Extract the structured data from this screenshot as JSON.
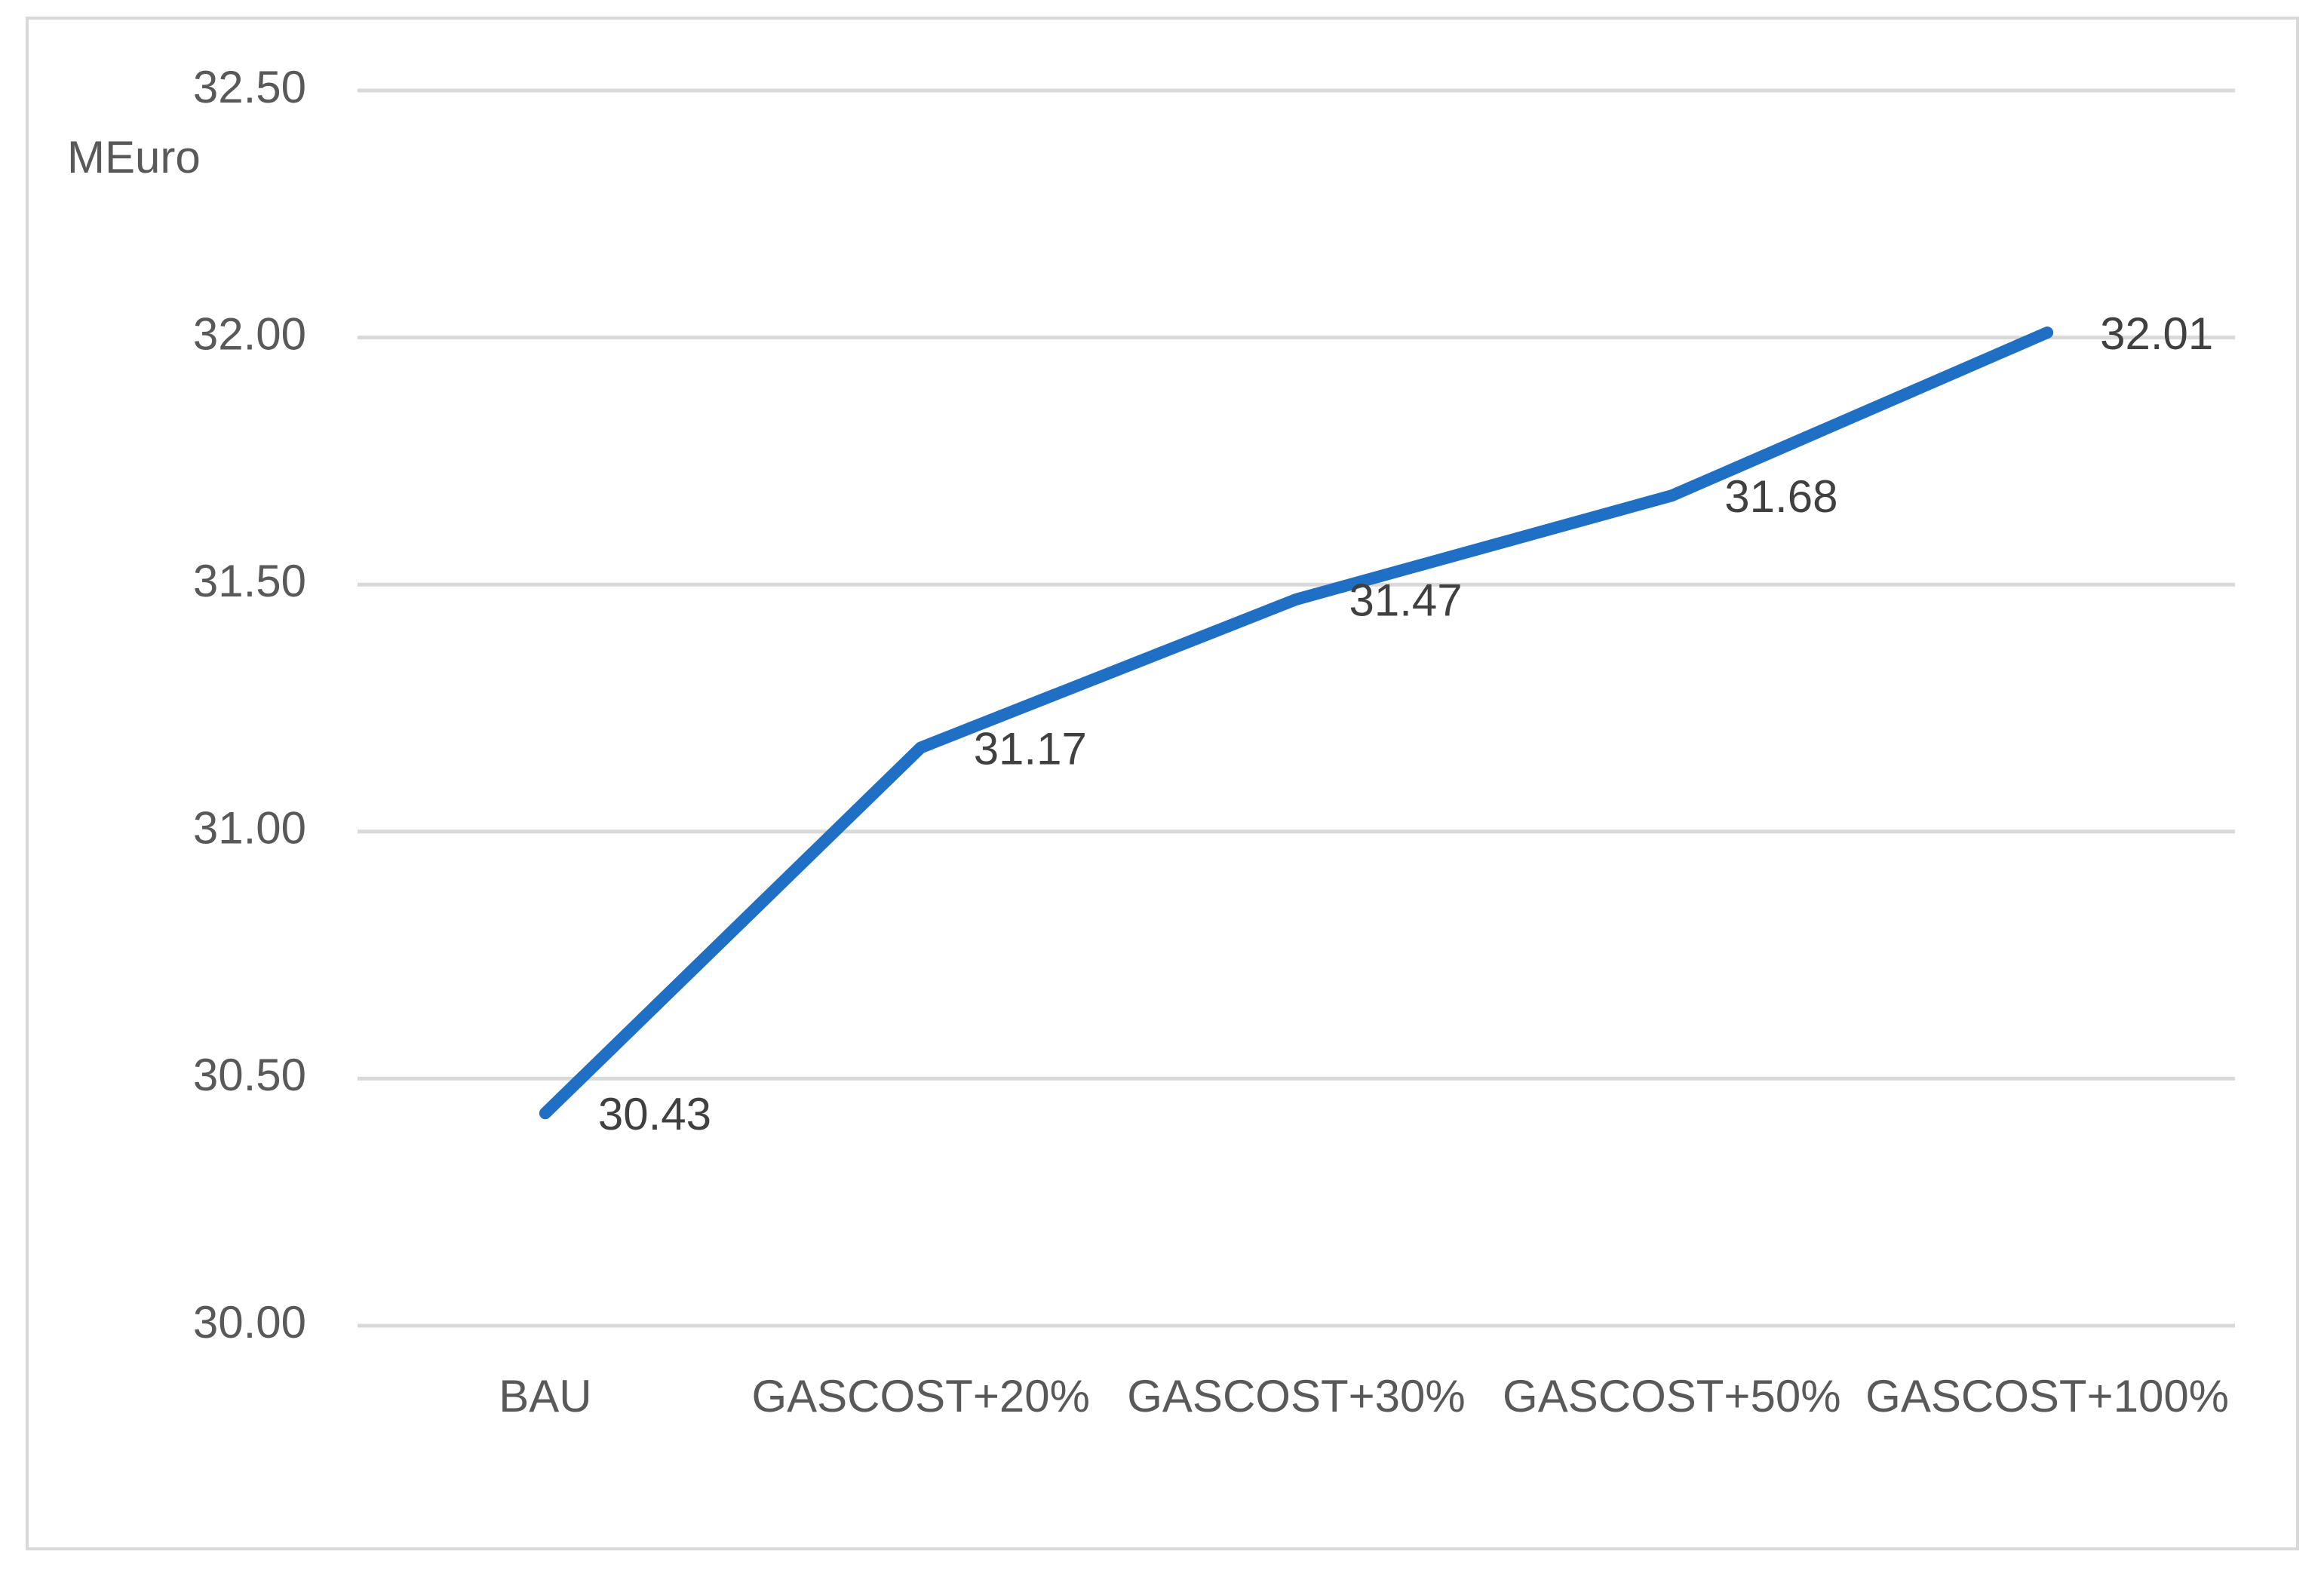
{
  "chart_data": {
    "type": "line",
    "y_label": "MEuro",
    "categories": [
      "BAU",
      "GASCOST+20%",
      "GASCOST+30%",
      "GASCOST+50%",
      "GASCOST+100%"
    ],
    "values": [
      30.43,
      31.17,
      31.47,
      31.68,
      32.01
    ],
    "color": "#1f6fc5",
    "ylim": [
      30,
      32.5
    ],
    "yticks": [
      {
        "value": 30,
        "label": "30.00"
      },
      {
        "value": 30.5,
        "label": "30.50"
      },
      {
        "value": 31,
        "label": "31.00"
      },
      {
        "value": 31.5,
        "label": "31.50"
      },
      {
        "value": 32,
        "label": "32.00"
      },
      {
        "value": 32.5,
        "label": "32.50"
      }
    ],
    "grid": true
  }
}
